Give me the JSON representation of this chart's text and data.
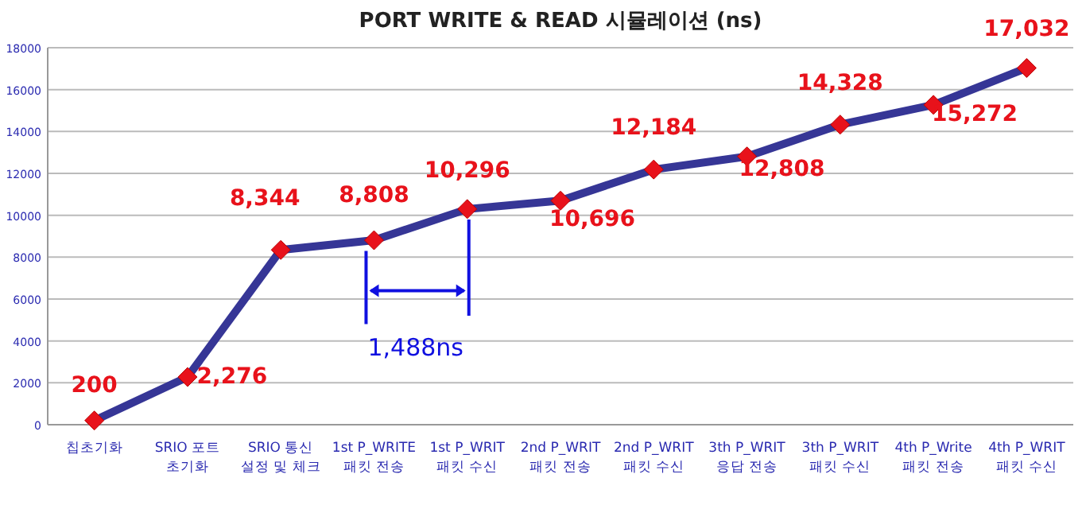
{
  "chart_data": {
    "type": "line",
    "title": "PORT WRITE  & READ 시뮬레이션 (ns)",
    "categories": [
      "칩초기화",
      "SRIO 포트\n초기화",
      "SRIO 통신\n설정 및 체크",
      "1st P_WRITE\n패킷 전송",
      "1st P_WRIT\n패킷 수신",
      "2nd P_WRIT\n패킷 전송",
      "2nd P_WRIT\n패킷 수신",
      "3th P_WRIT\n응답 전송",
      "3th P_WRIT\n패킷 수신",
      "4th P_Write\n패킷 전송",
      "4th P_WRIT\n패킷 수신"
    ],
    "series": [
      {
        "color": "#363696",
        "values": [
          200,
          2276,
          8344,
          8808,
          10296,
          10696,
          12184,
          12808,
          14328,
          15272,
          17032
        ],
        "value_labels": [
          "200",
          "2,276",
          "8,344",
          "8,808",
          "10,296",
          "10,696",
          "12,184",
          "12,808",
          "14,328",
          "15,272",
          "17,032"
        ]
      }
    ],
    "ylim": [
      0,
      18000
    ],
    "yticks": [
      0,
      2000,
      4000,
      6000,
      8000,
      10000,
      12000,
      14000,
      16000,
      18000
    ],
    "grid": "y",
    "marker": "diamond",
    "line_style": "solid",
    "annotations": [
      {
        "text": "1,488ns",
        "x": "1st P_WRITE\n패킷 전송",
        "y": 6400
      }
    ]
  }
}
